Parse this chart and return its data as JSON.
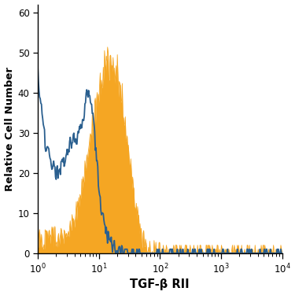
{
  "title": "",
  "xlabel": "TGF-β RII",
  "ylabel": "Relative Cell Number",
  "ylim": [
    0,
    62
  ],
  "yticks": [
    0,
    10,
    20,
    30,
    40,
    50,
    60
  ],
  "orange_color": "#F5A623",
  "blue_color": "#2A5F8F",
  "background_color": "#FFFFFF",
  "fig_width": 3.75,
  "fig_height": 3.75,
  "dpi": 100
}
